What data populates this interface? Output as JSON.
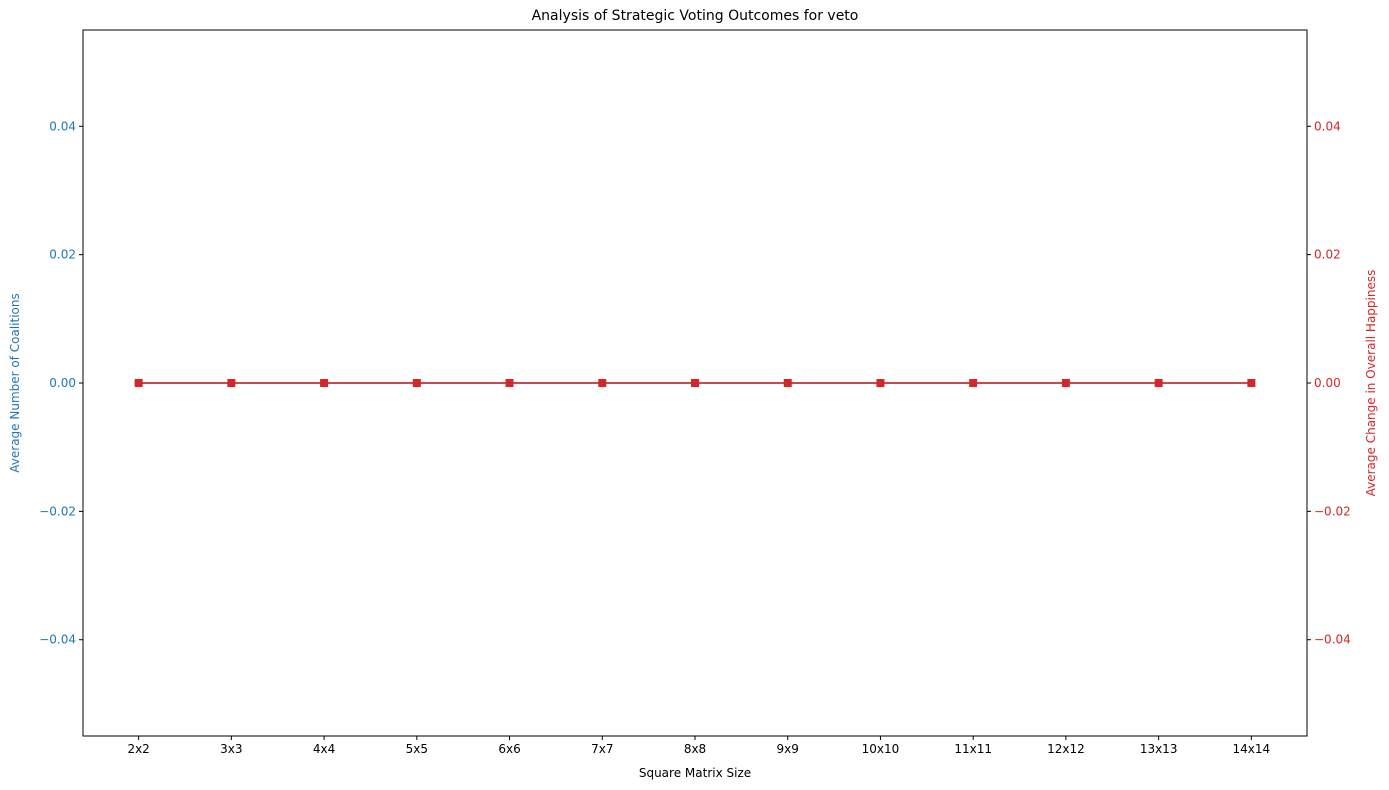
{
  "chart_data": {
    "type": "line",
    "title": "Analysis of Strategic Voting Outcomes for veto",
    "xlabel": "Square Matrix Size",
    "categories": [
      "2x2",
      "3x3",
      "4x4",
      "5x5",
      "6x6",
      "7x7",
      "8x8",
      "9x9",
      "10x10",
      "11x11",
      "12x12",
      "13x13",
      "14x14"
    ],
    "left_axis": {
      "label": "Average Number of Coalitions",
      "color": "#1f77b4",
      "ylim": [
        -0.055,
        0.055
      ],
      "ticks": [
        -0.04,
        -0.02,
        0.0,
        0.02,
        0.04
      ],
      "tick_labels": [
        "−0.04",
        "−0.02",
        "0.00",
        "0.02",
        "0.04"
      ]
    },
    "right_axis": {
      "label": "Average Change in Overall Happiness",
      "color": "#d62728",
      "ylim": [
        -0.055,
        0.055
      ],
      "ticks": [
        -0.04,
        -0.02,
        0.0,
        0.02,
        0.04
      ],
      "tick_labels": [
        "−0.04",
        "−0.02",
        "0.00",
        "0.02",
        "0.04"
      ]
    },
    "series": [
      {
        "axis": "left",
        "color": "#1f77b4",
        "marker": "circle",
        "values": [
          0,
          0,
          0,
          0,
          0,
          0,
          0,
          0,
          0,
          0,
          0,
          0,
          0
        ]
      },
      {
        "axis": "right",
        "color": "#d62728",
        "marker": "square",
        "values": [
          0,
          0,
          0,
          0,
          0,
          0,
          0,
          0,
          0,
          0,
          0,
          0,
          0
        ]
      }
    ],
    "grid": false,
    "legend": "none"
  }
}
